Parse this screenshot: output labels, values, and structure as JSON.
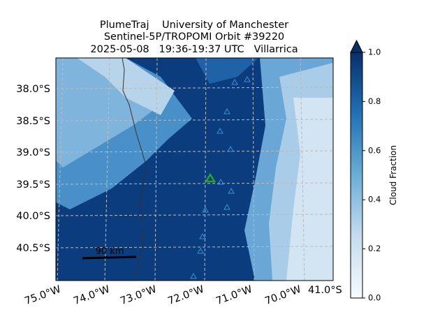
{
  "title": {
    "lines": [
      "PlumeTraj    University of Manchester",
      "Sentinel-5P/TROPOMI Orbit #39220",
      "2025-05-08   19:36-19:37 UTC   Villarrica"
    ]
  },
  "map": {
    "lat_labels": [
      "38.0°S",
      "38.5°S",
      "39.0°S",
      "39.5°S",
      "40.0°S",
      "40.5°S"
    ],
    "lon_labels": [
      "75.0°W",
      "74.0°W",
      "73.0°W",
      "72.0°W",
      "71.0°W",
      "70.0°W"
    ],
    "corner_label": "41.0°S",
    "scale_bar": "90 km"
  },
  "colorbar": {
    "label": "Cloud Fraction",
    "lim": [
      0,
      1
    ],
    "ticks": [
      {
        "value": 0,
        "label": "0.0"
      },
      0.2,
      0.4,
      0.6,
      0.8,
      {
        "value": 1,
        "label": "1.0"
      }
    ]
  }
}
